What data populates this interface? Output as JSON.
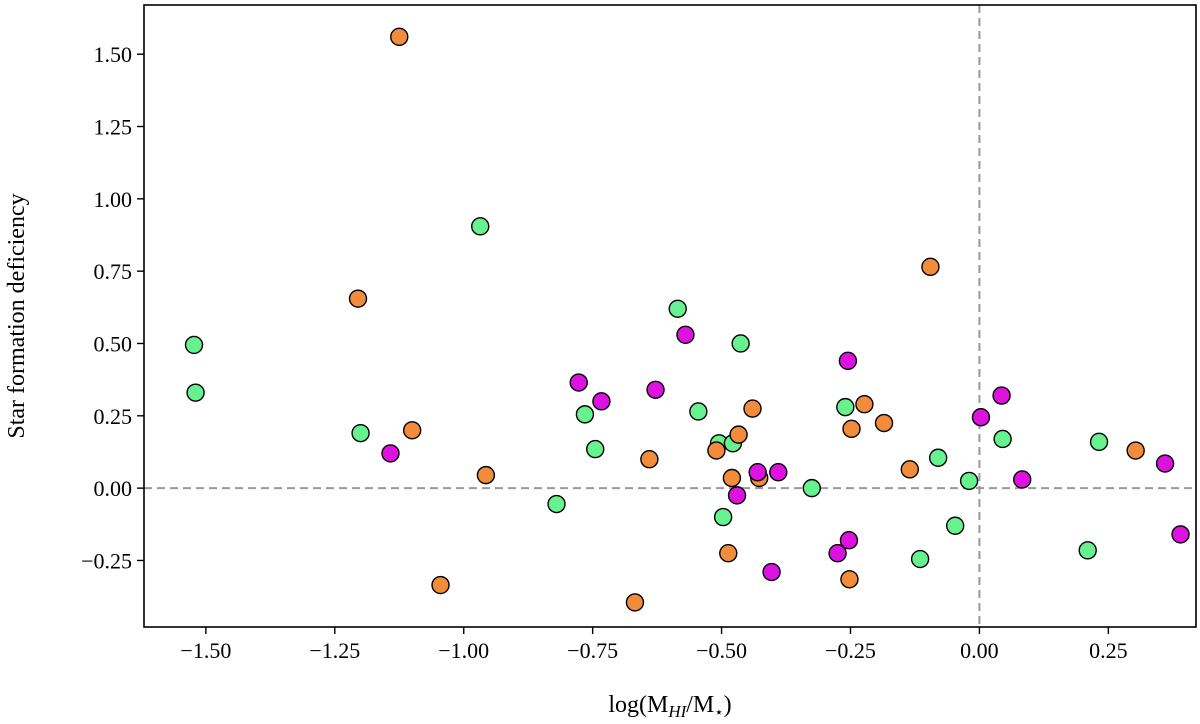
{
  "chart_data": {
    "type": "scatter",
    "title": "",
    "xlabel": "log(M_HI/M_⋆)",
    "xlabel_parts": {
      "pre": "log(M",
      "sub1": "HI",
      "mid": "/M",
      "sub2": "⋆",
      "post": ")"
    },
    "ylabel": "Star formation deficiency",
    "xlim": [
      -1.62,
      0.42
    ],
    "ylim": [
      -0.48,
      1.67
    ],
    "x_ticks": [
      -1.5,
      -1.25,
      -1.0,
      -0.75,
      -0.5,
      -0.25,
      0.0,
      0.25
    ],
    "x_tick_labels": [
      "−1.50",
      "−1.25",
      "−1.00",
      "−0.75",
      "−0.50",
      "−0.25",
      "0.00",
      "0.25"
    ],
    "y_ticks": [
      -0.25,
      0.0,
      0.25,
      0.5,
      0.75,
      1.0,
      1.25,
      1.5
    ],
    "y_tick_labels": [
      "−0.25",
      "0.00",
      "0.25",
      "0.50",
      "0.75",
      "1.00",
      "1.25",
      "1.50"
    ],
    "grid": false,
    "reference_lines": {
      "x": 0.0,
      "y": 0.0,
      "style": "dashed",
      "color": "#999999"
    },
    "series": [
      {
        "color": "#66f28f",
        "points": [
          [
            -1.523,
            0.495
          ],
          [
            -1.52,
            0.33
          ],
          [
            -1.2,
            0.19
          ],
          [
            -0.968,
            0.905
          ],
          [
            -0.82,
            -0.055
          ],
          [
            -0.765,
            0.255
          ],
          [
            -0.745,
            0.135
          ],
          [
            -0.585,
            0.62
          ],
          [
            -0.545,
            0.265
          ],
          [
            -0.505,
            0.155
          ],
          [
            -0.478,
            0.155
          ],
          [
            -0.463,
            0.5
          ],
          [
            -0.497,
            -0.1
          ],
          [
            -0.325,
            0.0
          ],
          [
            -0.26,
            0.28
          ],
          [
            -0.115,
            -0.245
          ],
          [
            -0.08,
            0.105
          ],
          [
            -0.047,
            -0.13
          ],
          [
            -0.02,
            0.025
          ],
          [
            0.045,
            0.17
          ],
          [
            0.21,
            -0.215
          ],
          [
            0.232,
            0.16
          ]
        ]
      },
      {
        "color": "#f08c3c",
        "points": [
          [
            -1.125,
            1.56
          ],
          [
            -1.205,
            0.655
          ],
          [
            -1.1,
            0.2
          ],
          [
            -0.957,
            0.045
          ],
          [
            -1.045,
            -0.335
          ],
          [
            -0.668,
            -0.395
          ],
          [
            -0.64,
            0.1
          ],
          [
            -0.51,
            0.13
          ],
          [
            -0.467,
            0.185
          ],
          [
            -0.48,
            0.035
          ],
          [
            -0.487,
            -0.225
          ],
          [
            -0.44,
            0.275
          ],
          [
            -0.427,
            0.035
          ],
          [
            -0.252,
            -0.315
          ],
          [
            -0.248,
            0.205
          ],
          [
            -0.223,
            0.29
          ],
          [
            -0.185,
            0.225
          ],
          [
            -0.135,
            0.065
          ],
          [
            -0.095,
            0.765
          ],
          [
            0.303,
            0.13
          ]
        ]
      },
      {
        "color": "#dd12e0",
        "points": [
          [
            -1.142,
            0.12
          ],
          [
            -0.777,
            0.365
          ],
          [
            -0.733,
            0.3
          ],
          [
            -0.628,
            0.34
          ],
          [
            -0.57,
            0.53
          ],
          [
            -0.47,
            -0.025
          ],
          [
            -0.43,
            0.055
          ],
          [
            -0.39,
            0.055
          ],
          [
            -0.403,
            -0.29
          ],
          [
            -0.275,
            -0.225
          ],
          [
            -0.253,
            -0.18
          ],
          [
            -0.255,
            0.44
          ],
          [
            0.003,
            0.245
          ],
          [
            0.043,
            0.32
          ],
          [
            0.083,
            0.03
          ],
          [
            0.36,
            0.085
          ],
          [
            0.39,
            -0.16
          ]
        ]
      }
    ]
  }
}
